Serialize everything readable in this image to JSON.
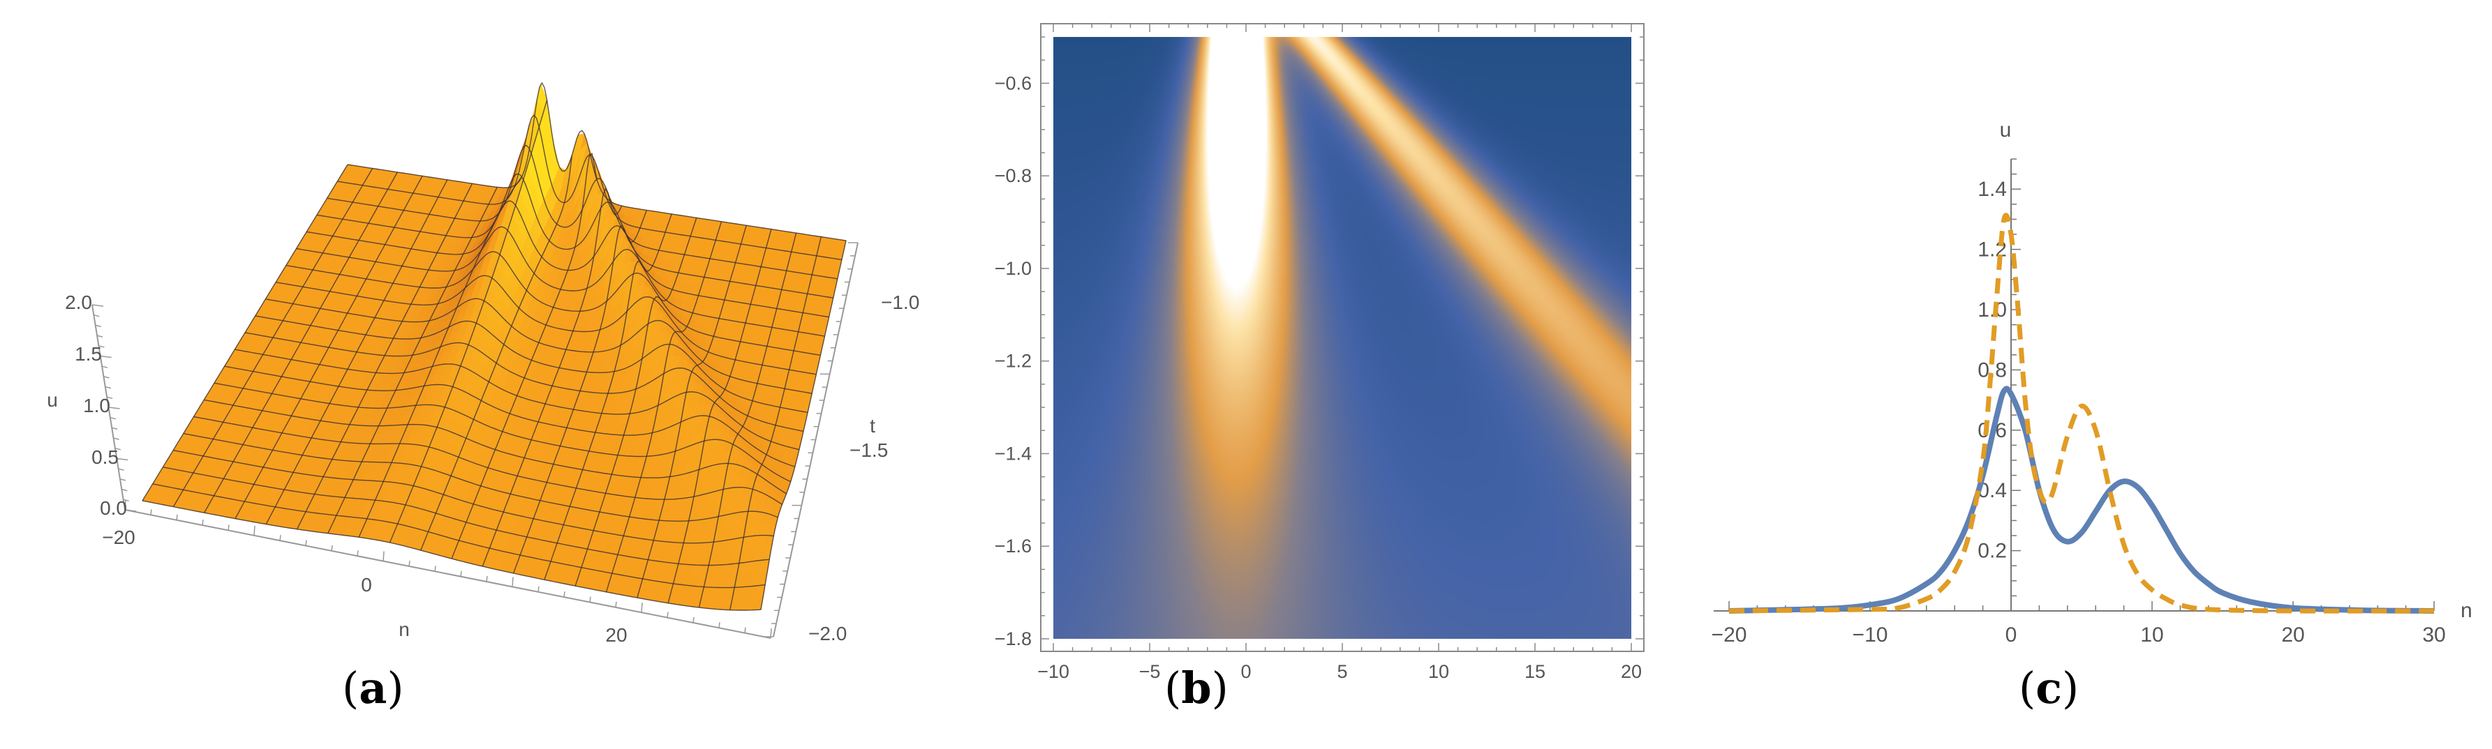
{
  "panels": [
    {
      "label_open": "(",
      "label_letter": "a",
      "label_close": ")"
    },
    {
      "label_open": "(",
      "label_letter": "b",
      "label_close": ")"
    },
    {
      "label_open": "(",
      "label_letter": "c",
      "label_close": ")"
    }
  ],
  "chart_data": [
    {
      "type": "surface",
      "xlabel": "n",
      "ylabel": "t",
      "zlabel": "u",
      "xlim": [
        -20,
        30
      ],
      "ylim": [
        -2.0,
        -0.5
      ],
      "zlim": [
        0,
        2.0
      ],
      "x_ticks": [
        "−20",
        "0",
        "20"
      ],
      "y_ticks": [
        "−1.0",
        "−1.5",
        "−2.0"
      ],
      "z_ticks": [
        "0.0",
        "0.5",
        "1.0",
        "1.5",
        "2.0"
      ],
      "mesh": true,
      "color": "#f7a01e"
    },
    {
      "type": "heatmap",
      "xlim": [
        -10,
        20
      ],
      "ylim": [
        -1.8,
        -0.5
      ],
      "x_ticks": [
        "−10",
        "−5",
        "0",
        "5",
        "10",
        "15",
        "20"
      ],
      "y_ticks": [
        "−0.6",
        "−0.8",
        "−1.0",
        "−1.2",
        "−1.4",
        "−1.6",
        "−1.8"
      ],
      "colormap": [
        "#234f86",
        "#4463a8",
        "#857f8c",
        "#e39d48",
        "#fde3a8",
        "#ffffff"
      ]
    },
    {
      "type": "line",
      "xlabel": "n",
      "ylabel": "u",
      "xlim": [
        -20,
        30
      ],
      "ylim": [
        0,
        1.5
      ],
      "x_ticks": [
        "−20",
        "−10",
        "0",
        "10",
        "20",
        "30"
      ],
      "y_ticks": [
        "0.2",
        "0.4",
        "0.6",
        "0.8",
        "1.0",
        "1.2",
        "1.4"
      ],
      "grid": false,
      "series": [
        {
          "style": "solid",
          "color": "#5e81b5",
          "x": [
            -20,
            -15,
            -12,
            -10,
            -8,
            -6,
            -5,
            -4,
            -3,
            -2,
            -1,
            -0.5,
            0,
            1,
            2,
            3,
            4,
            5,
            6,
            7,
            8,
            9,
            10,
            11,
            12,
            13,
            14,
            15,
            17,
            20,
            25,
            30
          ],
          "y": [
            0,
            0.005,
            0.01,
            0.02,
            0.04,
            0.09,
            0.13,
            0.2,
            0.3,
            0.45,
            0.65,
            0.73,
            0.72,
            0.6,
            0.4,
            0.27,
            0.23,
            0.26,
            0.33,
            0.4,
            0.43,
            0.41,
            0.35,
            0.27,
            0.19,
            0.13,
            0.09,
            0.06,
            0.03,
            0.01,
            0.002,
            0
          ]
        },
        {
          "style": "dashed",
          "color": "#e19c24",
          "x": [
            -20,
            -10,
            -8,
            -6,
            -5,
            -4,
            -3,
            -2,
            -1.5,
            -1,
            -0.5,
            0,
            0.5,
            1,
            1.5,
            2,
            2.5,
            3,
            4,
            5,
            6,
            7,
            8,
            9,
            10,
            11,
            12,
            14,
            20,
            30
          ],
          "y": [
            0,
            0.005,
            0.01,
            0.04,
            0.07,
            0.13,
            0.25,
            0.5,
            0.75,
            1.05,
            1.3,
            1.25,
            1.0,
            0.7,
            0.5,
            0.4,
            0.36,
            0.4,
            0.58,
            0.68,
            0.6,
            0.4,
            0.22,
            0.12,
            0.07,
            0.04,
            0.02,
            0.005,
            0,
            0
          ]
        }
      ]
    }
  ]
}
